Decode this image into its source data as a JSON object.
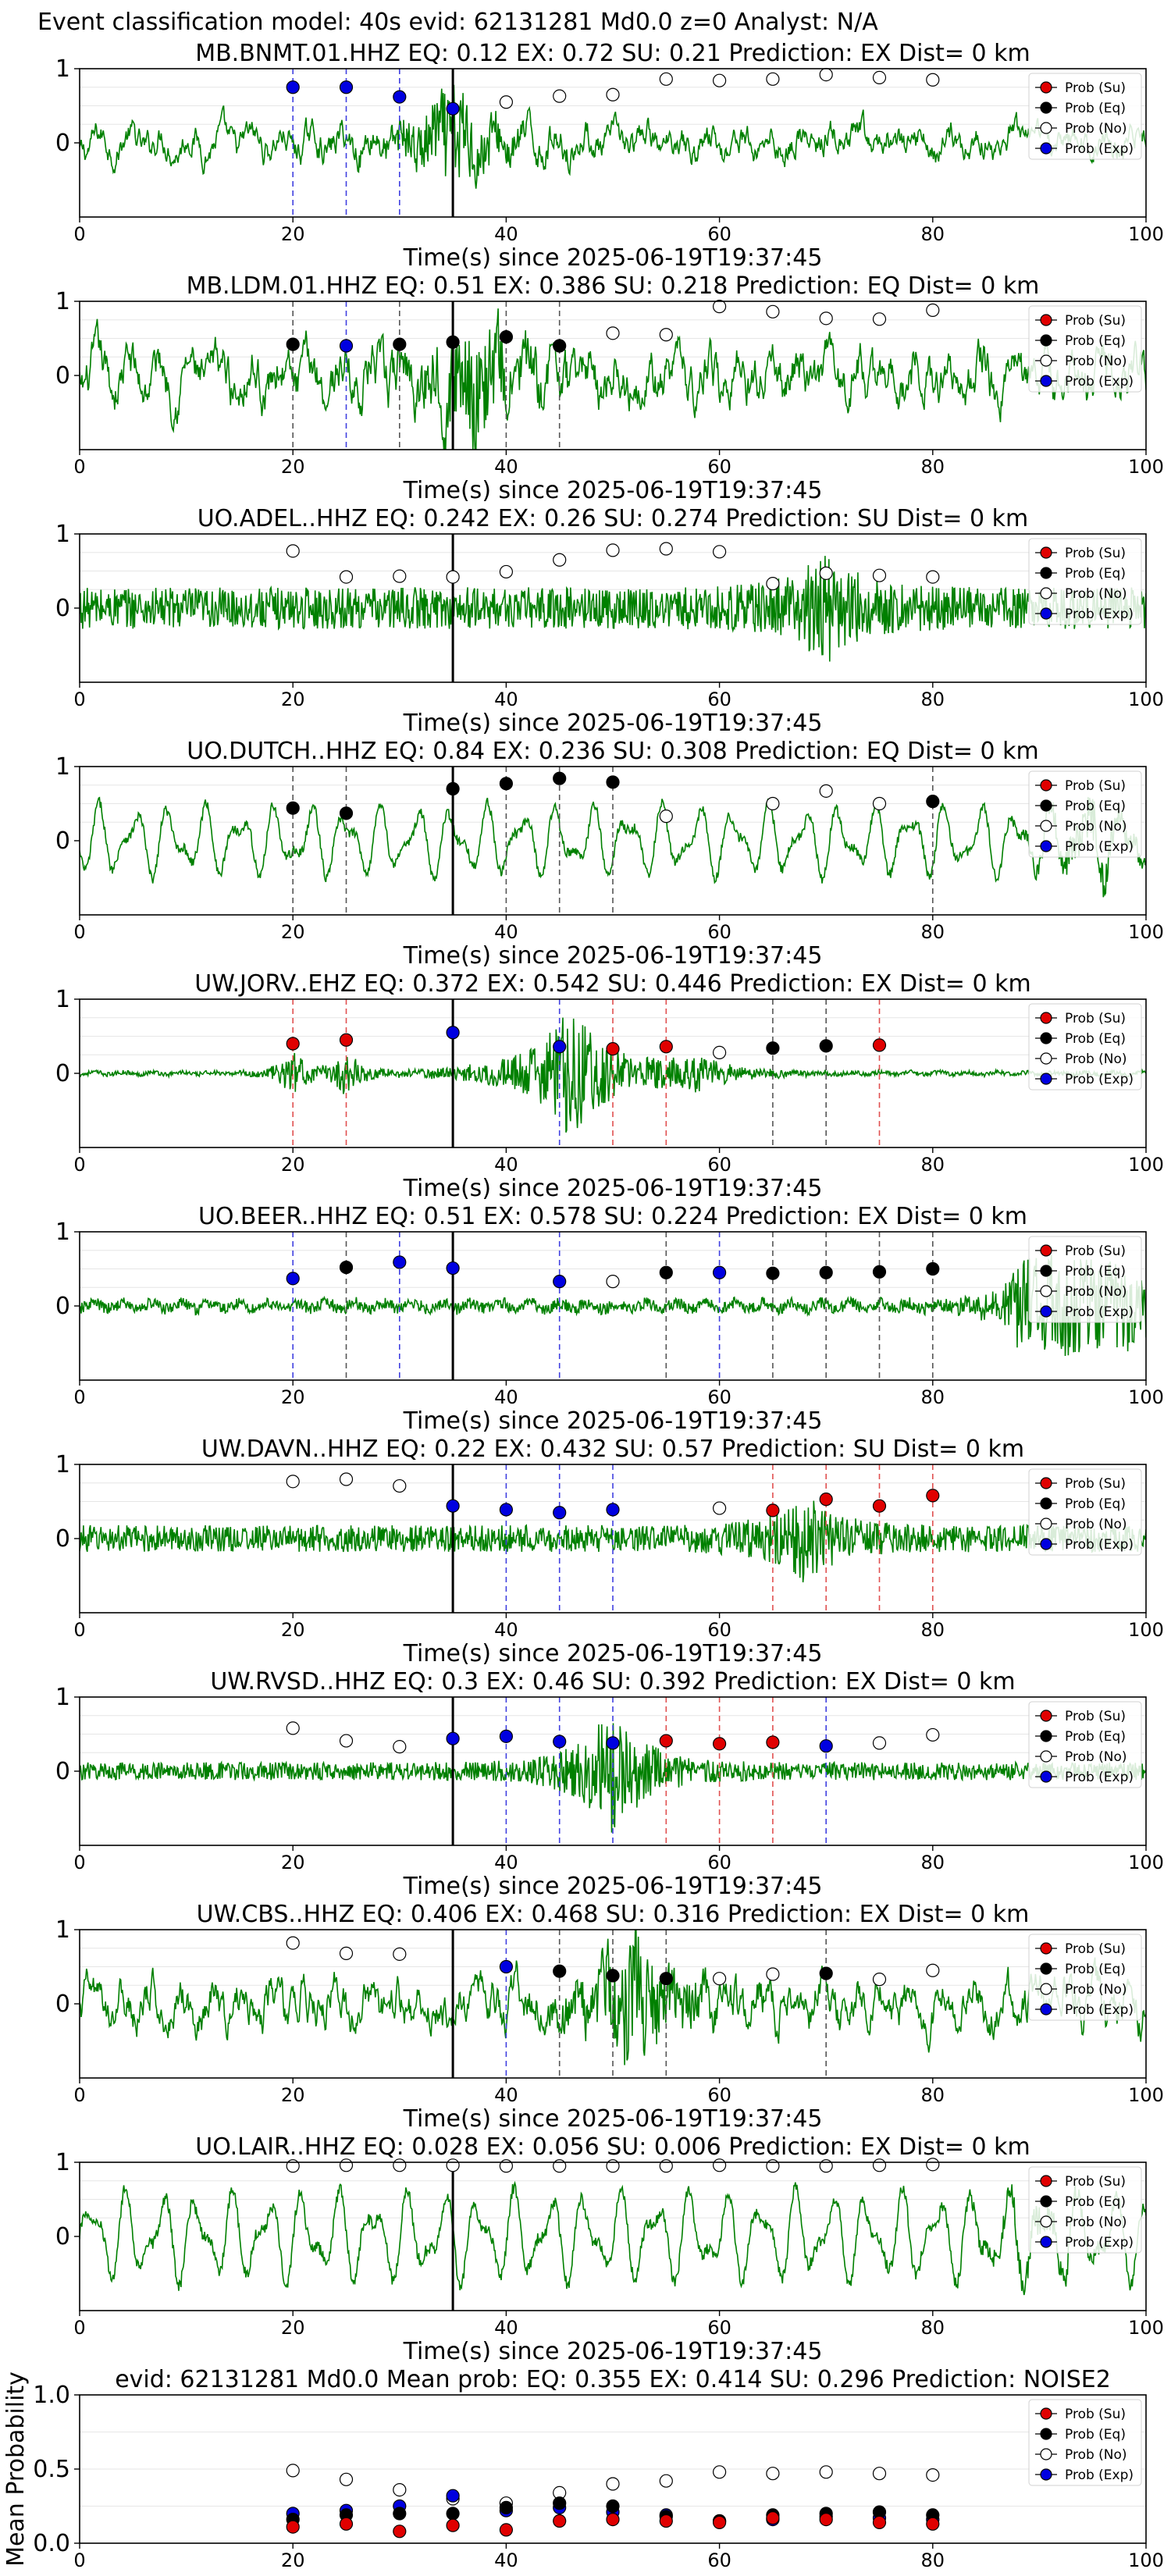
{
  "figure": {
    "suptitle": "Event classification model: 40s evid: 62131281 Md0.0 z=0 Analyst: N/A"
  },
  "legend_labels": [
    "Prob (Su)",
    "Prob (Eq)",
    "Prob (No)",
    "Prob (Exp)"
  ],
  "colors": {
    "trace": "#008000",
    "su": "#e00000",
    "eq": "#000000",
    "no": "#ffffff",
    "exp": "#0000e0"
  },
  "chart_data": [
    {
      "type": "line",
      "title": "MB.BNMT.01.HHZ   EQ: 0.12  EX: 0.72  SU: 0.21   Prediction: EX    Dist= 0 km",
      "xlabel": "Time(s) since 2025-06-19T19:37:45",
      "xlim": [
        0,
        100
      ],
      "ylim": [
        -1,
        1
      ],
      "xticks": [
        "0",
        "20",
        "40",
        "60",
        "80",
        "100"
      ],
      "yticks": [
        "1",
        "0"
      ],
      "pick_time": 35,
      "waveform": {
        "style": "mixed",
        "amp": 0.28,
        "burst_t": 35,
        "burst_amp": 0.65
      },
      "markers": [
        {
          "t": 20,
          "cls": "exp",
          "p": 0.75
        },
        {
          "t": 25,
          "cls": "exp",
          "p": 0.75
        },
        {
          "t": 30,
          "cls": "exp",
          "p": 0.62
        },
        {
          "t": 35,
          "cls": "exp",
          "p": 0.46
        },
        {
          "t": 40,
          "cls": "no",
          "p": 0.55
        },
        {
          "t": 45,
          "cls": "no",
          "p": 0.63
        },
        {
          "t": 50,
          "cls": "no",
          "p": 0.65
        },
        {
          "t": 55,
          "cls": "no",
          "p": 0.86
        },
        {
          "t": 60,
          "cls": "no",
          "p": 0.84
        },
        {
          "t": 65,
          "cls": "no",
          "p": 0.86
        },
        {
          "t": 70,
          "cls": "no",
          "p": 0.92
        },
        {
          "t": 75,
          "cls": "no",
          "p": 0.88
        },
        {
          "t": 80,
          "cls": "no",
          "p": 0.85
        }
      ]
    },
    {
      "type": "line",
      "title": "MB.LDM.01.HHZ   EQ: 0.51  EX: 0.386  SU: 0.218   Prediction: EQ    Dist= 0 km",
      "xlabel": "Time(s) since 2025-06-19T19:37:45",
      "xlim": [
        0,
        100
      ],
      "ylim": [
        -1,
        1
      ],
      "xticks": [
        "0",
        "20",
        "40",
        "60",
        "80",
        "100"
      ],
      "yticks": [
        "1",
        "0"
      ],
      "pick_time": 35,
      "waveform": {
        "style": "mixed",
        "amp": 0.45,
        "burst_t": 37,
        "burst_amp": 0.7
      },
      "markers": [
        {
          "t": 20,
          "cls": "eq",
          "p": 0.42
        },
        {
          "t": 25,
          "cls": "exp",
          "p": 0.4
        },
        {
          "t": 30,
          "cls": "eq",
          "p": 0.42
        },
        {
          "t": 35,
          "cls": "eq",
          "p": 0.45
        },
        {
          "t": 40,
          "cls": "eq",
          "p": 0.52
        },
        {
          "t": 45,
          "cls": "eq",
          "p": 0.4
        },
        {
          "t": 50,
          "cls": "no",
          "p": 0.57
        },
        {
          "t": 55,
          "cls": "no",
          "p": 0.55
        },
        {
          "t": 60,
          "cls": "no",
          "p": 0.93
        },
        {
          "t": 65,
          "cls": "no",
          "p": 0.86
        },
        {
          "t": 70,
          "cls": "no",
          "p": 0.77
        },
        {
          "t": 75,
          "cls": "no",
          "p": 0.76
        },
        {
          "t": 80,
          "cls": "no",
          "p": 0.88
        }
      ]
    },
    {
      "type": "line",
      "title": "UO.ADEL..HHZ   EQ: 0.242  EX: 0.26  SU: 0.274   Prediction: SU    Dist= 0 km",
      "xlabel": "Time(s) since 2025-06-19T19:37:45",
      "xlim": [
        0,
        100
      ],
      "ylim": [
        -1,
        1
      ],
      "xticks": [
        "0",
        "20",
        "40",
        "60",
        "80",
        "100"
      ],
      "yticks": [
        "1",
        "0"
      ],
      "pick_time": 35,
      "waveform": {
        "style": "noise",
        "amp": 0.28,
        "burst_t": 70,
        "burst_amp": 0.55
      },
      "markers": [
        {
          "t": 20,
          "cls": "no",
          "p": 0.77
        },
        {
          "t": 25,
          "cls": "no",
          "p": 0.42
        },
        {
          "t": 30,
          "cls": "no",
          "p": 0.43
        },
        {
          "t": 35,
          "cls": "no",
          "p": 0.42
        },
        {
          "t": 40,
          "cls": "no",
          "p": 0.49
        },
        {
          "t": 45,
          "cls": "no",
          "p": 0.65
        },
        {
          "t": 50,
          "cls": "no",
          "p": 0.78
        },
        {
          "t": 55,
          "cls": "no",
          "p": 0.8
        },
        {
          "t": 60,
          "cls": "no",
          "p": 0.76
        },
        {
          "t": 65,
          "cls": "no",
          "p": 0.33
        },
        {
          "t": 70,
          "cls": "no",
          "p": 0.47
        },
        {
          "t": 75,
          "cls": "no",
          "p": 0.44
        },
        {
          "t": 80,
          "cls": "no",
          "p": 0.42
        }
      ]
    },
    {
      "type": "line",
      "title": "UO.DUTCH..HHZ   EQ: 0.84  EX: 0.236  SU: 0.308   Prediction: EQ    Dist= 0 km",
      "xlabel": "Time(s) since 2025-06-19T19:37:45",
      "xlim": [
        0,
        100
      ],
      "ylim": [
        -1,
        1
      ],
      "xticks": [
        "0",
        "20",
        "40",
        "60",
        "80",
        "100"
      ],
      "yticks": [
        "1",
        "0"
      ],
      "pick_time": 35,
      "waveform": {
        "style": "smooth",
        "amp": 0.55,
        "burst_t": 95,
        "burst_amp": 0.3
      },
      "markers": [
        {
          "t": 20,
          "cls": "eq",
          "p": 0.44
        },
        {
          "t": 25,
          "cls": "eq",
          "p": 0.37
        },
        {
          "t": 35,
          "cls": "eq",
          "p": 0.7
        },
        {
          "t": 40,
          "cls": "eq",
          "p": 0.77
        },
        {
          "t": 45,
          "cls": "eq",
          "p": 0.84
        },
        {
          "t": 50,
          "cls": "eq",
          "p": 0.79
        },
        {
          "t": 55,
          "cls": "no",
          "p": 0.33
        },
        {
          "t": 65,
          "cls": "no",
          "p": 0.5
        },
        {
          "t": 70,
          "cls": "no",
          "p": 0.67
        },
        {
          "t": 75,
          "cls": "no",
          "p": 0.5
        },
        {
          "t": 80,
          "cls": "eq",
          "p": 0.53
        }
      ]
    },
    {
      "type": "line",
      "title": "UW.JORV..EHZ   EQ: 0.372  EX: 0.542  SU: 0.446   Prediction: EX    Dist= 0 km",
      "xlabel": "Time(s) since 2025-06-19T19:37:45",
      "xlim": [
        0,
        100
      ],
      "ylim": [
        -1,
        1
      ],
      "xticks": [
        "0",
        "20",
        "40",
        "60",
        "80",
        "100"
      ],
      "yticks": [
        "1",
        "0"
      ],
      "pick_time": 35,
      "waveform": {
        "style": "quiet",
        "amp": 0.03,
        "burst_t": 46,
        "burst_amp": 0.85
      },
      "markers": [
        {
          "t": 20,
          "cls": "su",
          "p": 0.4
        },
        {
          "t": 25,
          "cls": "su",
          "p": 0.45
        },
        {
          "t": 35,
          "cls": "exp",
          "p": 0.55
        },
        {
          "t": 45,
          "cls": "exp",
          "p": 0.36
        },
        {
          "t": 50,
          "cls": "su",
          "p": 0.33
        },
        {
          "t": 55,
          "cls": "su",
          "p": 0.36
        },
        {
          "t": 60,
          "cls": "no",
          "p": 0.28
        },
        {
          "t": 65,
          "cls": "eq",
          "p": 0.34
        },
        {
          "t": 70,
          "cls": "eq",
          "p": 0.37
        },
        {
          "t": 75,
          "cls": "su",
          "p": 0.38
        }
      ]
    },
    {
      "type": "line",
      "title": "UO.BEER..HHZ   EQ: 0.51  EX: 0.578  SU: 0.224   Prediction: EX    Dist= 0 km",
      "xlabel": "Time(s) since 2025-06-19T19:37:45",
      "xlim": [
        0,
        100
      ],
      "ylim": [
        -1,
        1
      ],
      "xticks": [
        "0",
        "20",
        "40",
        "60",
        "80",
        "100"
      ],
      "yticks": [
        "1",
        "0"
      ],
      "pick_time": 35,
      "waveform": {
        "style": "quiet-late",
        "amp": 0.08,
        "burst_t": 85,
        "burst_amp": 0.7
      },
      "markers": [
        {
          "t": 20,
          "cls": "exp",
          "p": 0.37
        },
        {
          "t": 25,
          "cls": "eq",
          "p": 0.52
        },
        {
          "t": 30,
          "cls": "exp",
          "p": 0.59
        },
        {
          "t": 35,
          "cls": "exp",
          "p": 0.51
        },
        {
          "t": 45,
          "cls": "exp",
          "p": 0.33
        },
        {
          "t": 50,
          "cls": "no",
          "p": 0.33
        },
        {
          "t": 55,
          "cls": "eq",
          "p": 0.45
        },
        {
          "t": 60,
          "cls": "exp",
          "p": 0.45
        },
        {
          "t": 65,
          "cls": "eq",
          "p": 0.44
        },
        {
          "t": 70,
          "cls": "eq",
          "p": 0.45
        },
        {
          "t": 75,
          "cls": "eq",
          "p": 0.46
        },
        {
          "t": 80,
          "cls": "eq",
          "p": 0.5
        }
      ]
    },
    {
      "type": "line",
      "title": "UW.DAVN..HHZ   EQ: 0.22  EX: 0.432  SU: 0.57   Prediction: SU    Dist= 0 km",
      "xlabel": "Time(s) since 2025-06-19T19:37:45",
      "xlim": [
        0,
        100
      ],
      "ylim": [
        -1,
        1
      ],
      "xticks": [
        "0",
        "20",
        "40",
        "60",
        "80",
        "100"
      ],
      "yticks": [
        "1",
        "0"
      ],
      "pick_time": 35,
      "waveform": {
        "style": "noise",
        "amp": 0.18,
        "burst_t": 68,
        "burst_amp": 0.45
      },
      "markers": [
        {
          "t": 20,
          "cls": "no",
          "p": 0.77
        },
        {
          "t": 25,
          "cls": "no",
          "p": 0.8
        },
        {
          "t": 30,
          "cls": "no",
          "p": 0.71
        },
        {
          "t": 35,
          "cls": "exp",
          "p": 0.44
        },
        {
          "t": 40,
          "cls": "exp",
          "p": 0.39
        },
        {
          "t": 45,
          "cls": "exp",
          "p": 0.35
        },
        {
          "t": 50,
          "cls": "exp",
          "p": 0.39
        },
        {
          "t": 60,
          "cls": "no",
          "p": 0.41
        },
        {
          "t": 65,
          "cls": "su",
          "p": 0.38
        },
        {
          "t": 70,
          "cls": "su",
          "p": 0.53
        },
        {
          "t": 75,
          "cls": "su",
          "p": 0.44
        },
        {
          "t": 80,
          "cls": "su",
          "p": 0.58
        }
      ]
    },
    {
      "type": "line",
      "title": "UW.RVSD..HHZ   EQ: 0.3  EX: 0.46  SU: 0.392   Prediction: EX    Dist= 0 km",
      "xlabel": "Time(s) since 2025-06-19T19:37:45",
      "xlim": [
        0,
        100
      ],
      "ylim": [
        -1,
        1
      ],
      "xticks": [
        "0",
        "20",
        "40",
        "60",
        "80",
        "100"
      ],
      "yticks": [
        "1",
        "0"
      ],
      "pick_time": 35,
      "waveform": {
        "style": "noise",
        "amp": 0.12,
        "burst_t": 50,
        "burst_amp": 0.8
      },
      "markers": [
        {
          "t": 20,
          "cls": "no",
          "p": 0.58
        },
        {
          "t": 25,
          "cls": "no",
          "p": 0.41
        },
        {
          "t": 30,
          "cls": "no",
          "p": 0.33
        },
        {
          "t": 35,
          "cls": "exp",
          "p": 0.44
        },
        {
          "t": 40,
          "cls": "exp",
          "p": 0.47
        },
        {
          "t": 45,
          "cls": "exp",
          "p": 0.4
        },
        {
          "t": 50,
          "cls": "exp",
          "p": 0.38
        },
        {
          "t": 55,
          "cls": "su",
          "p": 0.41
        },
        {
          "t": 60,
          "cls": "su",
          "p": 0.37
        },
        {
          "t": 65,
          "cls": "su",
          "p": 0.39
        },
        {
          "t": 70,
          "cls": "exp",
          "p": 0.34
        },
        {
          "t": 75,
          "cls": "no",
          "p": 0.38
        },
        {
          "t": 80,
          "cls": "no",
          "p": 0.49
        }
      ]
    },
    {
      "type": "line",
      "title": "UW.CBS..HHZ   EQ: 0.406  EX: 0.468  SU: 0.316   Prediction: EX    Dist= 0 km",
      "xlabel": "Time(s) since 2025-06-19T19:37:45",
      "xlim": [
        0,
        100
      ],
      "ylim": [
        -1,
        1
      ],
      "xticks": [
        "0",
        "20",
        "40",
        "60",
        "80",
        "100"
      ],
      "yticks": [
        "1",
        "0"
      ],
      "pick_time": 35,
      "waveform": {
        "style": "mixed",
        "amp": 0.4,
        "burst_t": 52,
        "burst_amp": 0.8
      },
      "markers": [
        {
          "t": 20,
          "cls": "no",
          "p": 0.82
        },
        {
          "t": 25,
          "cls": "no",
          "p": 0.68
        },
        {
          "t": 30,
          "cls": "no",
          "p": 0.67
        },
        {
          "t": 40,
          "cls": "exp",
          "p": 0.5
        },
        {
          "t": 45,
          "cls": "eq",
          "p": 0.44
        },
        {
          "t": 50,
          "cls": "eq",
          "p": 0.38
        },
        {
          "t": 55,
          "cls": "eq",
          "p": 0.34
        },
        {
          "t": 60,
          "cls": "no",
          "p": 0.34
        },
        {
          "t": 65,
          "cls": "no",
          "p": 0.4
        },
        {
          "t": 70,
          "cls": "eq",
          "p": 0.41
        },
        {
          "t": 75,
          "cls": "no",
          "p": 0.33
        },
        {
          "t": 80,
          "cls": "no",
          "p": 0.45
        }
      ]
    },
    {
      "type": "line",
      "title": "UO.LAIR..HHZ   EQ: 0.028  EX: 0.056  SU: 0.006   Prediction: EX    Dist= 0 km",
      "xlabel": "Time(s) since 2025-06-19T19:37:45",
      "xlim": [
        0,
        100
      ],
      "ylim": [
        -1,
        1
      ],
      "xticks": [
        "0",
        "20",
        "40",
        "60",
        "80",
        "100"
      ],
      "yticks": [
        "1",
        "0"
      ],
      "pick_time": 35,
      "waveform": {
        "style": "smooth",
        "amp": 0.7,
        "burst_t": 90,
        "burst_amp": 0.2
      },
      "markers": [
        {
          "t": 20,
          "cls": "no",
          "p": 0.95
        },
        {
          "t": 25,
          "cls": "no",
          "p": 0.96
        },
        {
          "t": 30,
          "cls": "no",
          "p": 0.96
        },
        {
          "t": 35,
          "cls": "no",
          "p": 0.96
        },
        {
          "t": 40,
          "cls": "no",
          "p": 0.95
        },
        {
          "t": 45,
          "cls": "no",
          "p": 0.95
        },
        {
          "t": 50,
          "cls": "no",
          "p": 0.95
        },
        {
          "t": 55,
          "cls": "no",
          "p": 0.95
        },
        {
          "t": 60,
          "cls": "no",
          "p": 0.96
        },
        {
          "t": 65,
          "cls": "no",
          "p": 0.95
        },
        {
          "t": 70,
          "cls": "no",
          "p": 0.95
        },
        {
          "t": 75,
          "cls": "no",
          "p": 0.96
        },
        {
          "t": 80,
          "cls": "no",
          "p": 0.97
        }
      ]
    },
    {
      "type": "scatter",
      "title": "evid: 62131281  Md0.0   Mean prob:   EQ: 0.355  EX: 0.414  SU: 0.296   Prediction: NOISE2",
      "xlabel": "",
      "ylabel": "Mean Probability",
      "xlim": [
        0,
        100
      ],
      "ylim": [
        0,
        1
      ],
      "xticks": [
        "0",
        "20",
        "40",
        "60",
        "80",
        "100"
      ],
      "yticks": [
        "0.0",
        "0.5",
        "1.0"
      ],
      "x": [
        20,
        25,
        30,
        35,
        40,
        45,
        50,
        55,
        60,
        65,
        70,
        75,
        80
      ],
      "series": [
        {
          "name": "Prob (No)",
          "cls": "no",
          "values": [
            0.49,
            0.43,
            0.36,
            0.3,
            0.27,
            0.34,
            0.4,
            0.42,
            0.48,
            0.47,
            0.48,
            0.47,
            0.46
          ]
        },
        {
          "name": "Prob (Exp)",
          "cls": "exp",
          "values": [
            0.2,
            0.22,
            0.25,
            0.32,
            0.22,
            0.24,
            0.21,
            0.19,
            0.15,
            0.16,
            0.18,
            0.17,
            0.16
          ]
        },
        {
          "name": "Prob (Eq)",
          "cls": "eq",
          "values": [
            0.16,
            0.19,
            0.2,
            0.2,
            0.24,
            0.27,
            0.25,
            0.18,
            0.15,
            0.19,
            0.2,
            0.21,
            0.19
          ]
        },
        {
          "name": "Prob (Su)",
          "cls": "su",
          "values": [
            0.11,
            0.13,
            0.08,
            0.12,
            0.09,
            0.15,
            0.16,
            0.15,
            0.14,
            0.17,
            0.16,
            0.14,
            0.13
          ]
        }
      ]
    }
  ]
}
